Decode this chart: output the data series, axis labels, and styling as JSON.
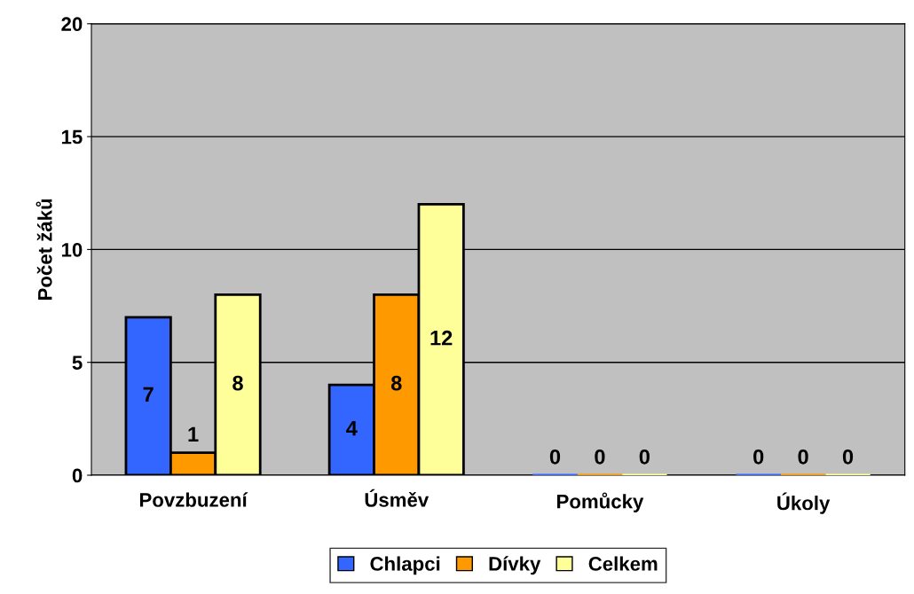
{
  "chart_data": {
    "type": "bar",
    "ylabel": "Počet žáků",
    "categories": [
      "Povzbuzení",
      "Úsměv",
      "Pomůcky",
      "Úkoly"
    ],
    "series": [
      {
        "name": "Chlapci",
        "color": "#3366ff",
        "values": [
          7,
          4,
          0,
          0
        ]
      },
      {
        "name": "Dívky",
        "color": "#ff9900",
        "values": [
          1,
          8,
          0,
          0
        ]
      },
      {
        "name": "Celkem",
        "color": "#ffff99",
        "values": [
          8,
          12,
          0,
          0
        ]
      }
    ],
    "ylim": [
      0,
      20
    ],
    "yticks": [
      0,
      5,
      10,
      15,
      20
    ],
    "grid": "y",
    "legend": "bottom",
    "data_labels": true
  }
}
